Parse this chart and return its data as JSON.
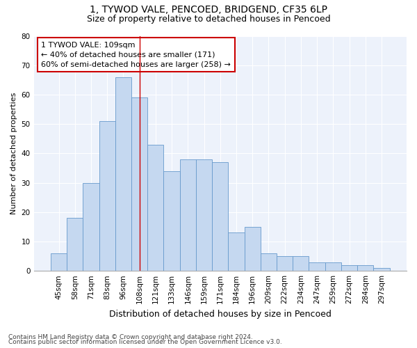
{
  "title1": "1, TYWOD VALE, PENCOED, BRIDGEND, CF35 6LP",
  "title2": "Size of property relative to detached houses in Pencoed",
  "xlabel": "Distribution of detached houses by size in Pencoed",
  "ylabel": "Number of detached properties",
  "categories": [
    "45sqm",
    "58sqm",
    "71sqm",
    "83sqm",
    "96sqm",
    "108sqm",
    "121sqm",
    "133sqm",
    "146sqm",
    "159sqm",
    "171sqm",
    "184sqm",
    "196sqm",
    "209sqm",
    "222sqm",
    "234sqm",
    "247sqm",
    "259sqm",
    "272sqm",
    "284sqm",
    "297sqm"
  ],
  "values": [
    6,
    18,
    30,
    51,
    66,
    59,
    43,
    34,
    38,
    38,
    37,
    13,
    15,
    6,
    5,
    5,
    3,
    3,
    2,
    2,
    1
  ],
  "bar_color": "#c5d8f0",
  "bar_edge_color": "#6699cc",
  "bar_width": 1.0,
  "ylim": [
    0,
    80
  ],
  "yticks": [
    0,
    10,
    20,
    30,
    40,
    50,
    60,
    70,
    80
  ],
  "vline_x_index": 5,
  "vline_color": "#cc0000",
  "annotation_line1": "1 TYWOD VALE: 109sqm",
  "annotation_line2": "← 40% of detached houses are smaller (171)",
  "annotation_line3": "60% of semi-detached houses are larger (258) →",
  "annotation_box_color": "#cc0000",
  "bg_color": "#edf2fb",
  "grid_color": "#ffffff",
  "footer1": "Contains HM Land Registry data © Crown copyright and database right 2024.",
  "footer2": "Contains public sector information licensed under the Open Government Licence v3.0.",
  "title1_fontsize": 10,
  "title2_fontsize": 9,
  "xlabel_fontsize": 9,
  "ylabel_fontsize": 8,
  "tick_fontsize": 7.5,
  "annotation_fontsize": 8,
  "footer_fontsize": 6.5
}
